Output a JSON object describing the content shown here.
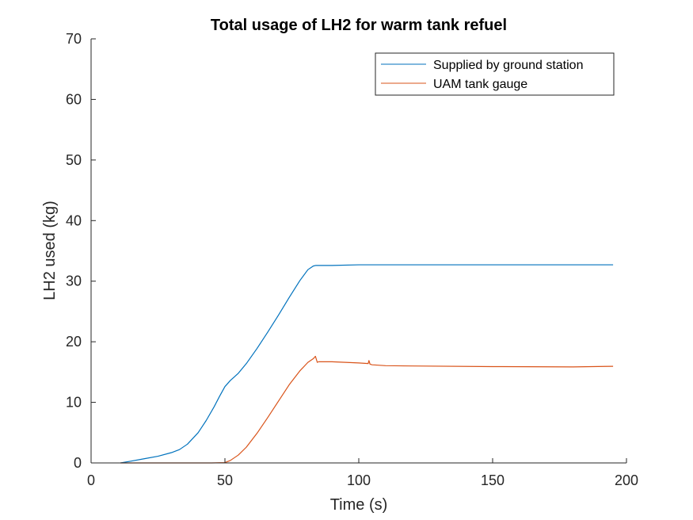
{
  "chart_data": {
    "type": "line",
    "title": "Total usage of LH2 for warm tank refuel",
    "xlabel": "Time (s)",
    "ylabel": "LH2 used (kg)",
    "xlim": [
      0,
      200
    ],
    "ylim": [
      0,
      70
    ],
    "xticks": [
      0,
      50,
      100,
      150,
      200
    ],
    "yticks": [
      0,
      10,
      20,
      30,
      40,
      50,
      60,
      70
    ],
    "grid": false,
    "legend_position": "top-right",
    "series": [
      {
        "name": "Supplied by ground station",
        "color": "#0072BD",
        "x": [
          11,
          15,
          20,
          25,
          30,
          33,
          36,
          40,
          43,
          46,
          48,
          50,
          52,
          55,
          58,
          62,
          66,
          70,
          74,
          78,
          81,
          83,
          84,
          90,
          100,
          120,
          150,
          180,
          195
        ],
        "y": [
          0,
          0.3,
          0.7,
          1.1,
          1.7,
          2.2,
          3.1,
          5.0,
          7.0,
          9.3,
          11.0,
          12.6,
          13.6,
          14.8,
          16.4,
          18.9,
          21.6,
          24.4,
          27.3,
          30.1,
          31.9,
          32.5,
          32.6,
          32.6,
          32.7,
          32.7,
          32.7,
          32.7,
          32.7
        ]
      },
      {
        "name": "UAM tank gauge",
        "color": "#D95319",
        "x": [
          11,
          30,
          45,
          50,
          52,
          55,
          58,
          62,
          66,
          70,
          74,
          78,
          81,
          83,
          83.8,
          84.5,
          85,
          90,
          95,
          100,
          103.5,
          103.8,
          104.2,
          105,
          110,
          120,
          150,
          180,
          195
        ],
        "y": [
          0,
          0,
          0,
          0.05,
          0.4,
          1.3,
          2.6,
          4.9,
          7.5,
          10.2,
          12.9,
          15.2,
          16.6,
          17.2,
          17.6,
          16.6,
          16.7,
          16.7,
          16.6,
          16.5,
          16.4,
          16.9,
          16.3,
          16.2,
          16.05,
          16.0,
          15.9,
          15.85,
          15.95
        ]
      }
    ]
  }
}
